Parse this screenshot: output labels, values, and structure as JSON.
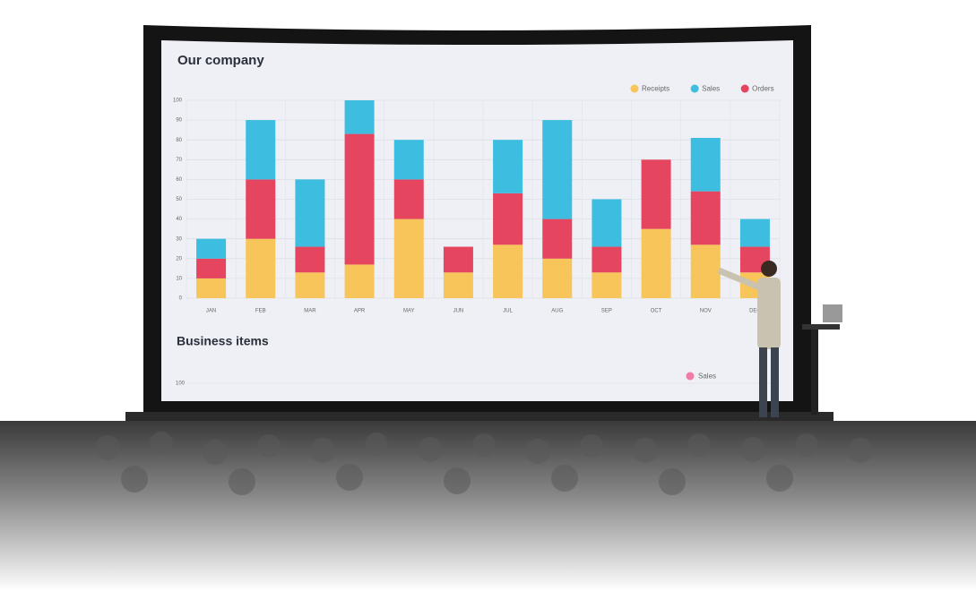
{
  "chart_data": [
    {
      "type": "stacked-bar",
      "title": "Our company",
      "categories": [
        "JAN",
        "FEB",
        "MAR",
        "APR",
        "MAY",
        "JUN",
        "JUL",
        "AUG",
        "SEP",
        "OCT",
        "NOV",
        "DEC"
      ],
      "series": [
        {
          "name": "Receipts",
          "color": "#f8c55a",
          "values": [
            10,
            30,
            13,
            17,
            40,
            13,
            27,
            20,
            13,
            35,
            27,
            13
          ]
        },
        {
          "name": "Orders",
          "color": "#e6455f",
          "values": [
            10,
            30,
            13,
            66,
            20,
            13,
            26,
            20,
            13,
            35,
            27,
            13
          ]
        },
        {
          "name": "Sales",
          "color": "#3dbde0",
          "values": [
            10,
            30,
            34,
            17,
            20,
            0,
            27,
            50,
            24,
            0,
            27,
            14
          ]
        }
      ],
      "legend_order": [
        0,
        2,
        1
      ],
      "ylim": [
        0,
        100
      ],
      "yticks": [
        0,
        10,
        20,
        30,
        40,
        50,
        60,
        70,
        80,
        90,
        100
      ],
      "grid": true,
      "legend": "top-right"
    },
    {
      "type": "bar",
      "title": "Business items",
      "series": [
        {
          "name": "Sales",
          "color": "#f07aa8"
        }
      ],
      "yticks": [
        100
      ]
    }
  ]
}
